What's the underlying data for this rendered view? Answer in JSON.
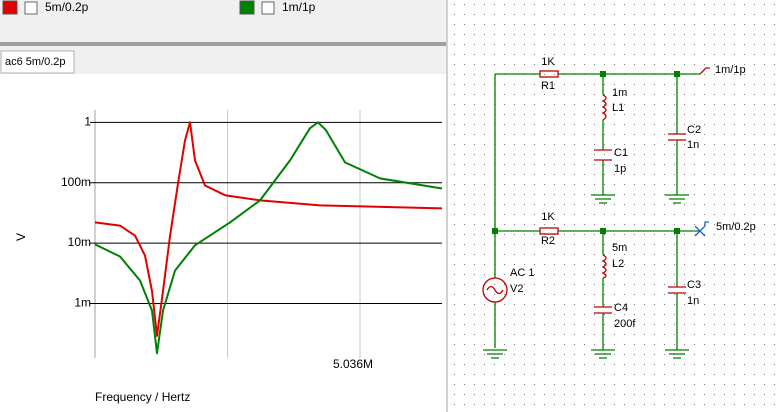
{
  "tab": "ac6 5m/0.2p",
  "chart_data": {
    "type": "line",
    "yscale": "log",
    "grid": true,
    "xlabel": "Frequency / Hertz",
    "ylabel": "V",
    "xlim": [
      0,
      6594000
    ],
    "ylim": [
      0.00014,
      1.6
    ],
    "xticks": [
      {
        "value": 2518000,
        "label": null
      },
      {
        "value": 5036000,
        "label": "5.036M"
      }
    ],
    "yticks": [
      1,
      {
        "value": 0.1,
        "label": "100m"
      },
      {
        "value": 0.01,
        "label": "10m"
      },
      {
        "value": 0.001,
        "label": "1m"
      }
    ],
    "series": [
      {
        "name": "5m/0.2p",
        "color": "#e00000",
        "x": [
          0,
          475000,
          760000,
          950000,
          1083000,
          1178000,
          1292000,
          1425000,
          1577000,
          1710000,
          1805000,
          1900000,
          2090000,
          2470000,
          3136000,
          4276000,
          6594000
        ],
        "values": [
          0.022,
          0.0195,
          0.0133,
          0.0062,
          0.0016,
          0.00029,
          0.0016,
          0.013,
          0.097,
          0.5,
          1,
          0.234,
          0.09,
          0.062,
          0.051,
          0.042,
          0.0375
        ]
      },
      {
        "name": "1m/1p",
        "color": "#008000",
        "x": [
          0,
          475000,
          855000,
          1083000,
          1178000,
          1292000,
          1520000,
          1900000,
          2565000,
          3136000,
          3706000,
          4086000,
          4238000,
          4390000,
          4751000,
          5416000,
          6594000
        ],
        "values": [
          0.0095,
          0.006,
          0.0024,
          0.00076,
          0.00015,
          0.00076,
          0.0035,
          0.0092,
          0.022,
          0.051,
          0.234,
          0.8,
          1,
          0.74,
          0.217,
          0.118,
          0.08
        ]
      }
    ]
  },
  "schematic": {
    "components": [
      {
        "name": "R1",
        "value": "1K"
      },
      {
        "name": "L1",
        "value": "1m"
      },
      {
        "name": "C1",
        "value": "1p"
      },
      {
        "name": "C2",
        "value": "1n"
      },
      {
        "name": "R2",
        "value": "1K"
      },
      {
        "name": "L2",
        "value": "5m"
      },
      {
        "name": "C4",
        "value": "200f"
      },
      {
        "name": "C3",
        "value": "1n"
      },
      {
        "name": "V2",
        "value": "AC 1"
      }
    ],
    "probes": [
      "1m/1p",
      "5m/0.2p"
    ]
  }
}
